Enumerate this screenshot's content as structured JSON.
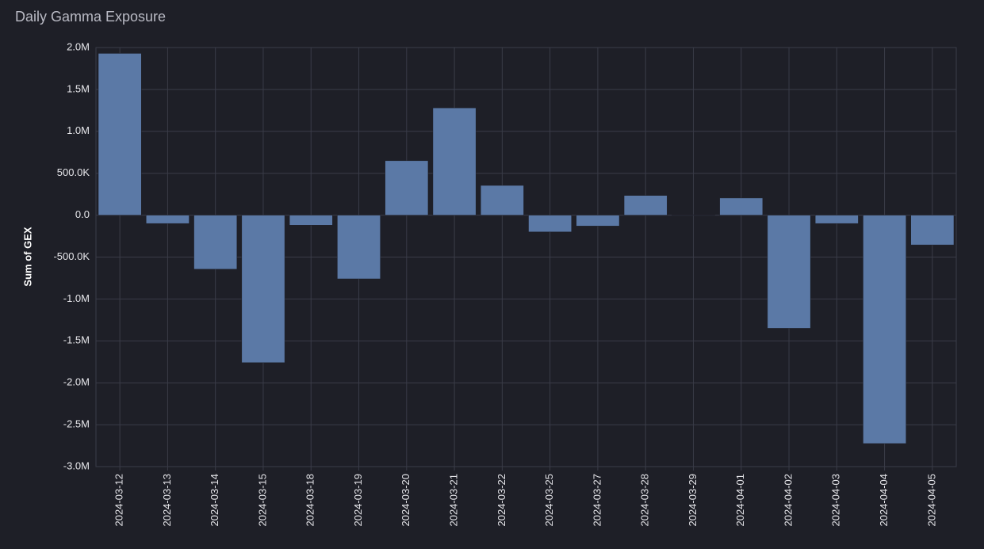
{
  "chart_data": {
    "type": "bar",
    "title": "Daily Gamma Exposure",
    "y_label": "Sum of GEX",
    "categories": [
      "2024-03-12",
      "2024-03-13",
      "2024-03-14",
      "2024-03-15",
      "2024-03-18",
      "2024-03-19",
      "2024-03-20",
      "2024-03-21",
      "2024-03-22",
      "2024-03-25",
      "2024-03-27",
      "2024-03-28",
      "2024-03-29",
      "2024-04-01",
      "2024-04-02",
      "2024-04-03",
      "2024-04-04",
      "2024-04-05"
    ],
    "values": [
      1930000,
      -100000,
      -645000,
      -1760000,
      -120000,
      -760000,
      650000,
      1280000,
      355000,
      -200000,
      -130000,
      235000,
      5000,
      205000,
      -1350000,
      -100000,
      -2725000,
      -355000
    ],
    "color": "#5b79a6",
    "ylim": [
      -3000000,
      2000000
    ],
    "yticks": [
      {
        "value": -3000000,
        "label": "-3.0M"
      },
      {
        "value": -2500000,
        "label": "-2.5M"
      },
      {
        "value": -2000000,
        "label": "-2.0M"
      },
      {
        "value": -1500000,
        "label": "-1.5M"
      },
      {
        "value": -1000000,
        "label": "-1.0M"
      },
      {
        "value": -500000,
        "label": "-500.0K"
      },
      {
        "value": 0,
        "label": "0.0"
      },
      {
        "value": 500000,
        "label": "500.0K"
      },
      {
        "value": 1000000,
        "label": "1.0M"
      },
      {
        "value": 1500000,
        "label": "1.5M"
      },
      {
        "value": 2000000,
        "label": "2.0M"
      }
    ],
    "grid": true
  }
}
